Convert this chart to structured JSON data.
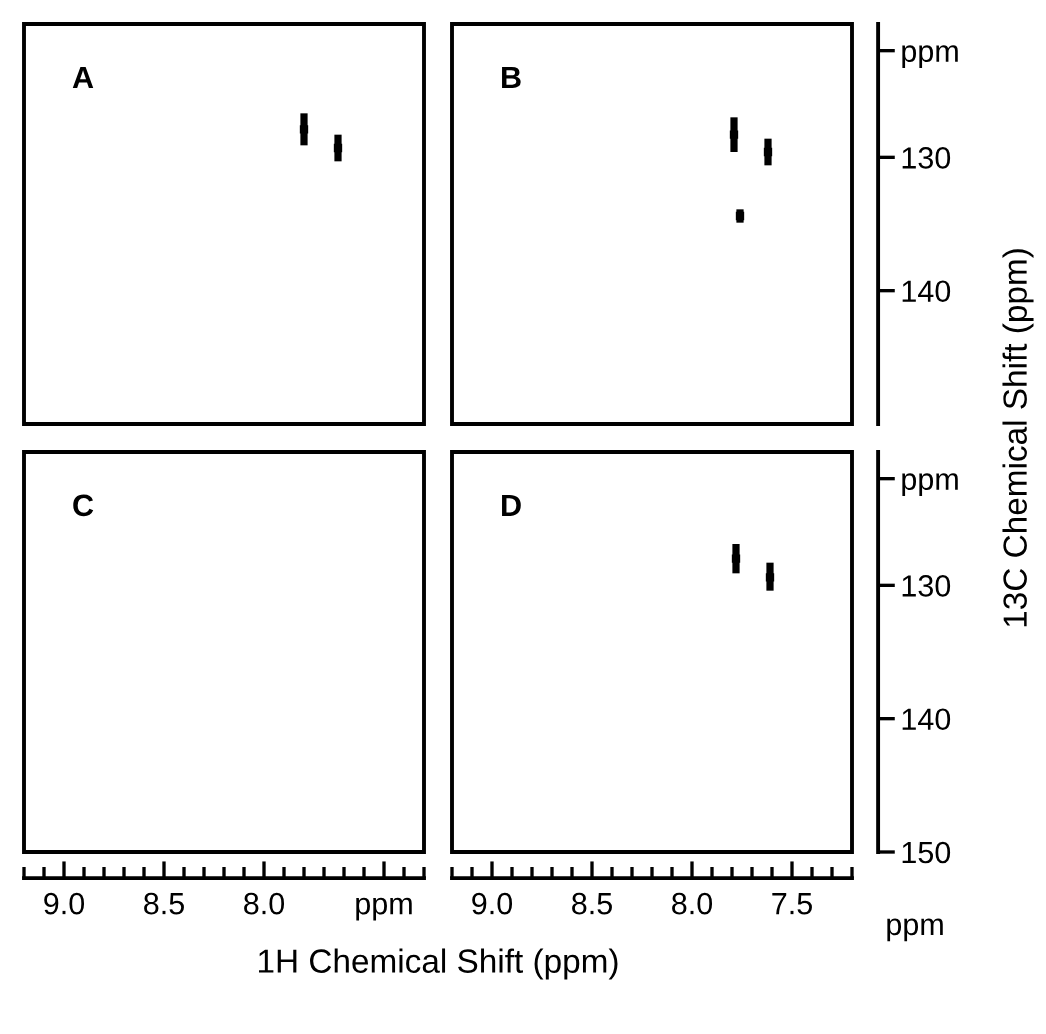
{
  "chart_data": [
    {
      "type": "scatter",
      "title": "A",
      "xlim": [
        9.2,
        7.2
      ],
      "ylim": [
        150,
        120
      ],
      "tick_labels": false,
      "marker": "square",
      "grid": false,
      "series": [
        {
          "color": "#000000",
          "x": [
            7.8,
            7.63
          ],
          "values": [
            127.9,
            129.3
          ],
          "errors": [
            [
              126.7,
              129.1
            ],
            [
              128.3,
              130.3
            ]
          ]
        }
      ]
    },
    {
      "type": "scatter",
      "title": "B",
      "ylabel": "13C Chemical Shift (ppm)",
      "xlim": [
        9.2,
        7.2
      ],
      "ylim": [
        150,
        120
      ],
      "tick_labels": "y",
      "marker": "square",
      "grid": false,
      "yticks": [
        {
          "value": 122,
          "label": "ppm"
        },
        130,
        140
      ],
      "series": [
        {
          "color": "#000000",
          "x": [
            7.79,
            7.62,
            7.76
          ],
          "values": [
            128.3,
            129.6,
            134.4
          ],
          "errors": [
            [
              127.0,
              129.6
            ],
            [
              128.6,
              130.6
            ],
            [
              133.9,
              134.9
            ]
          ]
        }
      ]
    },
    {
      "type": "scatter",
      "title": "C",
      "xlabel": "1H Chemical Shift (ppm)",
      "xlim": [
        9.2,
        7.2
      ],
      "ylim": [
        150,
        120
      ],
      "tick_labels": "x",
      "grid": false,
      "xticks": [
        {
          "value": 9.2,
          "label": null
        },
        {
          "value": 9.1,
          "label": null
        },
        {
          "value": 9.0,
          "label": "9.0"
        },
        {
          "value": 8.9,
          "label": null
        },
        {
          "value": 8.8,
          "label": null
        },
        {
          "value": 8.7,
          "label": null
        },
        {
          "value": 8.6,
          "label": null
        },
        {
          "value": 8.5,
          "label": "8.5"
        },
        {
          "value": 8.4,
          "label": null
        },
        {
          "value": 8.3,
          "label": null
        },
        {
          "value": 8.2,
          "label": null
        },
        {
          "value": 8.1,
          "label": null
        },
        {
          "value": 8.0,
          "label": "8.0"
        },
        {
          "value": 7.9,
          "label": null
        },
        {
          "value": 7.8,
          "label": null
        },
        {
          "value": 7.7,
          "label": null
        },
        {
          "value": 7.6,
          "label": null
        },
        {
          "value": 7.5,
          "label": null
        },
        {
          "value": 7.4,
          "label": "ppm"
        },
        {
          "value": 7.3,
          "label": null
        },
        {
          "value": 7.2,
          "label": null
        }
      ]
    },
    {
      "type": "scatter",
      "title": "D",
      "xlim": [
        9.2,
        7.2
      ],
      "ylim": [
        150,
        120
      ],
      "marker": "square",
      "grid": false,
      "annotations": [
        "ppm"
      ],
      "xticks": [
        {
          "value": 9.2,
          "label": null
        },
        {
          "value": 9.1,
          "label": null
        },
        {
          "value": 9.0,
          "label": "9.0"
        },
        {
          "value": 8.9,
          "label": null
        },
        {
          "value": 8.8,
          "label": null
        },
        {
          "value": 8.7,
          "label": null
        },
        {
          "value": 8.6,
          "label": null
        },
        8.5,
        {
          "value": 8.4,
          "label": null
        },
        {
          "value": 8.3,
          "label": null
        },
        {
          "value": 8.2,
          "label": null
        },
        {
          "value": 8.1,
          "label": null
        },
        {
          "value": 8.0,
          "label": "8.0"
        },
        {
          "value": 7.9,
          "label": null
        },
        {
          "value": 7.8,
          "label": null
        },
        {
          "value": 7.7,
          "label": null
        },
        {
          "value": 7.6,
          "label": null
        },
        7.5,
        {
          "value": 7.4,
          "label": null
        },
        {
          "value": 7.3,
          "label": null
        },
        {
          "value": 7.2,
          "label": null
        }
      ],
      "yticks": [
        {
          "value": 122,
          "label": "ppm"
        },
        130,
        140,
        150
      ],
      "series": [
        {
          "color": "#000000",
          "x": [
            7.78,
            7.61
          ],
          "values": [
            128.0,
            129.4
          ],
          "errors": [
            [
              126.9,
              129.1
            ],
            [
              128.3,
              130.4
            ]
          ]
        }
      ]
    }
  ]
}
